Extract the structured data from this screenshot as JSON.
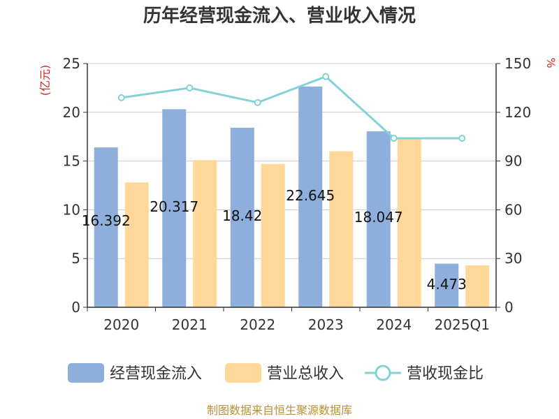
{
  "chart_data": {
    "type": "bar",
    "title": "历年经营现金流入、营业收入情况",
    "categories": [
      "2020",
      "2021",
      "2022",
      "2023",
      "2024",
      "2025Q1"
    ],
    "y_left": {
      "unit": "(亿元)",
      "ylim": [
        0,
        25
      ],
      "ticks": [
        0,
        5,
        10,
        15,
        20,
        25
      ]
    },
    "y_right": {
      "unit": "%",
      "ylim": [
        0,
        150
      ],
      "ticks": [
        0,
        30,
        60,
        90,
        120,
        150
      ]
    },
    "series": [
      {
        "name": "经营现金流入",
        "kind": "bar",
        "axis": "left",
        "color": "#8eaedb",
        "values": [
          16.392,
          20.317,
          18.42,
          22.645,
          18.047,
          4.473
        ],
        "labels": [
          "16.392",
          "20.317",
          "18.42",
          "22.645",
          "18.047",
          "4.473"
        ]
      },
      {
        "name": "营业总收入",
        "kind": "bar",
        "axis": "left",
        "color": "#ffd899",
        "values": [
          12.8,
          15.1,
          14.7,
          16.0,
          17.4,
          4.3
        ]
      },
      {
        "name": "营收现金比",
        "kind": "line",
        "axis": "right",
        "color": "#84d2d6",
        "values": [
          129,
          135,
          126,
          142,
          104,
          104
        ]
      }
    ],
    "grid": true,
    "legend_position": "bottom"
  },
  "source": "制图数据来自恒生聚源数据库"
}
